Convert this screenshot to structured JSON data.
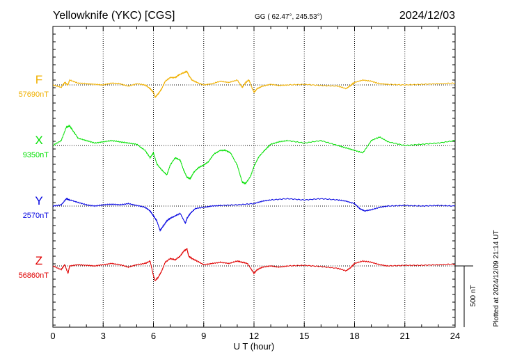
{
  "header": {
    "station": "Yellowknife (YKC)  [CGS]",
    "coords": "GG ( 62.47°, 245.53°)",
    "date": "2024/12/03"
  },
  "footer": {
    "plotted": "Plotted at 2024/12/09 21:14 UT"
  },
  "chart_data": {
    "type": "line",
    "xlabel": "U T (hour)",
    "xlim": [
      0,
      24
    ],
    "x_ticks": [
      0,
      3,
      6,
      9,
      12,
      15,
      18,
      21,
      24
    ],
    "x_tick_labels": [
      "0",
      "3",
      "6",
      "9",
      "12",
      "15",
      "18",
      "21",
      "24"
    ],
    "scale_bar_label": "500 nT",
    "scale_bar_nT": 500,
    "grid": true,
    "series": [
      {
        "name": "F",
        "baseline_label": "57690nT",
        "color": "#f0b000",
        "x": [
          0,
          0.5,
          0.7,
          0.9,
          1,
          1.5,
          2,
          2.5,
          3,
          3.5,
          4,
          4.5,
          5,
          5.5,
          5.8,
          6,
          6.1,
          6.3,
          6.5,
          6.7,
          7,
          7.3,
          7.5,
          7.8,
          8,
          8.1,
          8.3,
          8.6,
          9,
          9.5,
          10,
          10.5,
          11,
          11.3,
          11.5,
          11.7,
          11.9,
          12,
          12.2,
          12.5,
          13,
          13.5,
          14,
          15,
          16,
          17,
          17.5,
          17.8,
          18,
          18.5,
          19,
          19.5,
          20,
          21,
          22,
          23,
          24
        ],
        "nT": [
          0,
          -20,
          20,
          0,
          40,
          15,
          10,
          5,
          0,
          15,
          10,
          -10,
          10,
          0,
          -30,
          -60,
          -100,
          -70,
          -30,
          30,
          60,
          60,
          80,
          100,
          110,
          80,
          40,
          20,
          0,
          10,
          30,
          20,
          40,
          -20,
          20,
          40,
          -30,
          -60,
          -30,
          -10,
          5,
          -5,
          0,
          5,
          -5,
          -10,
          -30,
          0,
          20,
          40,
          30,
          10,
          5,
          0,
          5,
          10,
          15
        ]
      },
      {
        "name": "X",
        "baseline_label": "9350nT",
        "color": "#00e000",
        "x": [
          0,
          0.5,
          0.8,
          1,
          1.2,
          1.5,
          2,
          2.5,
          3,
          3.5,
          4,
          4.5,
          5,
          5.5,
          5.8,
          6,
          6.2,
          6.5,
          6.8,
          7,
          7.3,
          7.6,
          7.8,
          8,
          8.2,
          8.4,
          8.7,
          9,
          9.3,
          9.6,
          10,
          10.3,
          10.6,
          11,
          11.3,
          11.5,
          11.8,
          12,
          12.3,
          12.7,
          13,
          13.5,
          14,
          15,
          16,
          17,
          17.5,
          18,
          18.5,
          19,
          19.5,
          20,
          21,
          22,
          23,
          24
        ],
        "nT": [
          0,
          40,
          150,
          160,
          120,
          60,
          40,
          20,
          30,
          40,
          30,
          20,
          10,
          -40,
          -100,
          -60,
          -150,
          -200,
          -240,
          -160,
          -100,
          -120,
          -200,
          -260,
          -270,
          -220,
          -180,
          -160,
          -130,
          -70,
          -40,
          -40,
          -60,
          -160,
          -300,
          -310,
          -250,
          -170,
          -90,
          -30,
          10,
          30,
          40,
          20,
          40,
          0,
          -20,
          -40,
          -60,
          40,
          70,
          30,
          0,
          10,
          20,
          40
        ]
      },
      {
        "name": "Y",
        "baseline_label": "2570nT",
        "color": "#0000e0",
        "x": [
          0,
          0.5,
          0.8,
          1,
          1.5,
          2,
          2.5,
          3,
          3.5,
          4,
          4.5,
          5,
          5.5,
          5.8,
          6,
          6.2,
          6.4,
          6.6,
          6.8,
          7,
          7.3,
          7.6,
          7.9,
          8,
          8.2,
          8.5,
          9,
          9.5,
          10,
          11,
          12,
          12.5,
          13,
          14,
          15,
          16,
          17,
          17.5,
          18,
          18.3,
          18.6,
          19,
          19.5,
          20,
          21,
          22,
          23,
          24
        ],
        "nT": [
          0,
          10,
          60,
          50,
          30,
          10,
          0,
          10,
          15,
          10,
          20,
          5,
          -10,
          -40,
          -80,
          -120,
          -200,
          -160,
          -120,
          -100,
          -80,
          -60,
          -140,
          -100,
          -60,
          -20,
          -10,
          0,
          5,
          10,
          20,
          40,
          50,
          60,
          50,
          60,
          50,
          40,
          20,
          -20,
          -40,
          -30,
          -10,
          0,
          5,
          0,
          5,
          0
        ]
      },
      {
        "name": "Z",
        "baseline_label": "56860nT",
        "color": "#e00000",
        "x": [
          0,
          0.5,
          0.7,
          0.9,
          1,
          1.5,
          2,
          2.5,
          3,
          3.5,
          4,
          4.5,
          5,
          5.5,
          5.8,
          6,
          6.1,
          6.3,
          6.5,
          6.7,
          7,
          7.3,
          7.6,
          7.8,
          8,
          8.1,
          8.3,
          8.6,
          9,
          9.5,
          10,
          10.5,
          11,
          11.3,
          11.6,
          11.9,
          12,
          12.2,
          12.5,
          13,
          13.5,
          14,
          15,
          16,
          17,
          17.5,
          17.8,
          18,
          18.5,
          19,
          19.5,
          20,
          21,
          22,
          23,
          24
        ],
        "nT": [
          0,
          -30,
          10,
          -60,
          0,
          10,
          5,
          0,
          10,
          20,
          10,
          -10,
          10,
          20,
          40,
          -80,
          -120,
          -90,
          -40,
          30,
          60,
          50,
          80,
          120,
          140,
          80,
          60,
          40,
          10,
          20,
          30,
          20,
          40,
          30,
          20,
          -40,
          -60,
          -30,
          -10,
          0,
          -10,
          0,
          5,
          -5,
          -20,
          -40,
          -10,
          20,
          40,
          30,
          10,
          0,
          5,
          5,
          10,
          15
        ]
      }
    ]
  }
}
